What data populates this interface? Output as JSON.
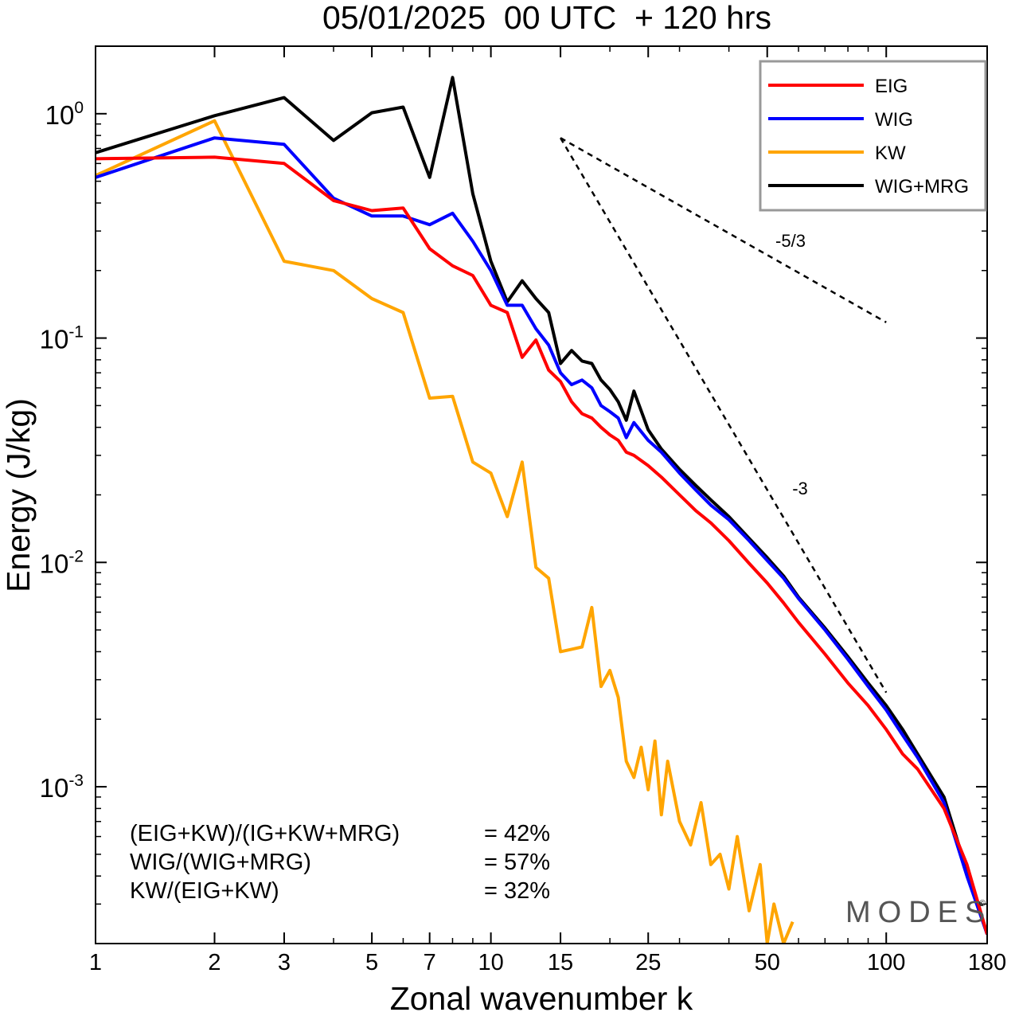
{
  "chart_data": {
    "type": "line",
    "title": "05/01/2025  00 UTC  + 120 hrs",
    "xlabel": "Zonal wavenumber k",
    "ylabel": "Energy (J/kg)",
    "x_scale": "log",
    "y_scale": "log",
    "xlim": [
      1,
      180
    ],
    "ylim": [
      0.0002,
      2.0
    ],
    "x_ticks": [
      1,
      2,
      3,
      5,
      7,
      10,
      15,
      25,
      50,
      100,
      180
    ],
    "y_ticks": [
      {
        "value": 1.0,
        "base": "10",
        "exp": "0"
      },
      {
        "value": 0.1,
        "base": "10",
        "exp": "-1"
      },
      {
        "value": 0.01,
        "base": "10",
        "exp": "-2"
      },
      {
        "value": 0.001,
        "base": "10",
        "exp": "-3"
      }
    ],
    "grid": false,
    "legend_position": "top-right",
    "series": [
      {
        "name": "EIG",
        "color": "#ff0000",
        "x": [
          1,
          2,
          3,
          4,
          5,
          6,
          7,
          8,
          9,
          10,
          11,
          12,
          13,
          14,
          15,
          16,
          17,
          18,
          19,
          20,
          21,
          22,
          23,
          25,
          27,
          30,
          33,
          36,
          40,
          45,
          50,
          55,
          60,
          70,
          80,
          90,
          100,
          110,
          120,
          140,
          160,
          180
        ],
        "y": [
          0.63,
          0.64,
          0.6,
          0.41,
          0.37,
          0.38,
          0.25,
          0.21,
          0.19,
          0.14,
          0.13,
          0.082,
          0.098,
          0.072,
          0.064,
          0.052,
          0.046,
          0.044,
          0.04,
          0.037,
          0.035,
          0.031,
          0.03,
          0.027,
          0.024,
          0.02,
          0.017,
          0.015,
          0.0125,
          0.0099,
          0.0081,
          0.0066,
          0.0054,
          0.0039,
          0.0029,
          0.0023,
          0.0018,
          0.0014,
          0.0012,
          0.0008,
          0.00045,
          0.00022
        ]
      },
      {
        "name": "WIG",
        "color": "#0000ff",
        "x": [
          1,
          2,
          3,
          4,
          5,
          6,
          7,
          8,
          9,
          10,
          11,
          12,
          13,
          14,
          15,
          16,
          17,
          18,
          19,
          20,
          21,
          22,
          23,
          25,
          27,
          30,
          33,
          36,
          40,
          45,
          50,
          55,
          60,
          70,
          80,
          90,
          100,
          110,
          120,
          140,
          160,
          180
        ],
        "y": [
          0.52,
          0.78,
          0.73,
          0.42,
          0.35,
          0.35,
          0.32,
          0.36,
          0.27,
          0.2,
          0.14,
          0.14,
          0.11,
          0.093,
          0.07,
          0.062,
          0.065,
          0.06,
          0.05,
          0.047,
          0.044,
          0.036,
          0.042,
          0.035,
          0.031,
          0.025,
          0.021,
          0.018,
          0.0155,
          0.0125,
          0.0102,
          0.0085,
          0.0069,
          0.005,
          0.0037,
          0.0028,
          0.0022,
          0.0017,
          0.00135,
          0.00085,
          0.0004,
          0.00022
        ]
      },
      {
        "name": "KW",
        "color": "#ffa500",
        "x": [
          1,
          2,
          3,
          4,
          5,
          6,
          7,
          8,
          9,
          10,
          11,
          12,
          13,
          14,
          15,
          16,
          17,
          18,
          19,
          20,
          21,
          22,
          23,
          24,
          25,
          26,
          27,
          28,
          30,
          32,
          34,
          36,
          38,
          40,
          42,
          45,
          48,
          50,
          52,
          55,
          58
        ],
        "y": [
          0.53,
          0.93,
          0.22,
          0.2,
          0.15,
          0.13,
          0.054,
          0.055,
          0.028,
          0.025,
          0.016,
          0.028,
          0.0095,
          0.0085,
          0.004,
          0.0041,
          0.0042,
          0.0063,
          0.0028,
          0.0033,
          0.0025,
          0.0013,
          0.0011,
          0.0015,
          0.00097,
          0.0016,
          0.00075,
          0.0013,
          0.0007,
          0.00055,
          0.00085,
          0.00045,
          0.0005,
          0.00035,
          0.0006,
          0.00028,
          0.00045,
          0.0002,
          0.0003,
          0.0002,
          0.00025
        ]
      },
      {
        "name": "WIG+MRG",
        "color": "#000000",
        "x": [
          1,
          2,
          3,
          4,
          5,
          6,
          7,
          8,
          9,
          10,
          11,
          12,
          13,
          14,
          15,
          16,
          17,
          18,
          19,
          20,
          21,
          22,
          23,
          25,
          27,
          30,
          33,
          36,
          40,
          45,
          50,
          55,
          60,
          70,
          80,
          90,
          100,
          110,
          120,
          140,
          160,
          180
        ],
        "y": [
          0.67,
          0.98,
          1.18,
          0.76,
          1.01,
          1.07,
          0.52,
          1.45,
          0.44,
          0.22,
          0.145,
          0.18,
          0.15,
          0.13,
          0.077,
          0.088,
          0.079,
          0.077,
          0.065,
          0.059,
          0.052,
          0.043,
          0.058,
          0.039,
          0.032,
          0.026,
          0.022,
          0.019,
          0.016,
          0.0128,
          0.0105,
          0.0087,
          0.007,
          0.0051,
          0.0038,
          0.0029,
          0.0023,
          0.0018,
          0.0014,
          0.0009,
          0.00042,
          0.00022
        ]
      }
    ],
    "reference_lines": [
      {
        "label": "-5/3",
        "slope": -1.6667,
        "x": [
          15,
          100
        ],
        "y": [
          0.78,
          0.1175
        ]
      },
      {
        "label": "-3",
        "slope": -3,
        "x": [
          15,
          100
        ],
        "y": [
          0.78,
          0.00263
        ]
      }
    ],
    "annotations": [
      {
        "label": "(EIG+KW)/(IG+KW+MRG)",
        "value": "= 42%"
      },
      {
        "label": "WIG/(WIG+MRG)",
        "value": "= 57%"
      },
      {
        "label": "KW/(EIG+KW)",
        "value": "= 32%"
      }
    ],
    "watermark": "MODES",
    "watermark_mark": "©"
  }
}
